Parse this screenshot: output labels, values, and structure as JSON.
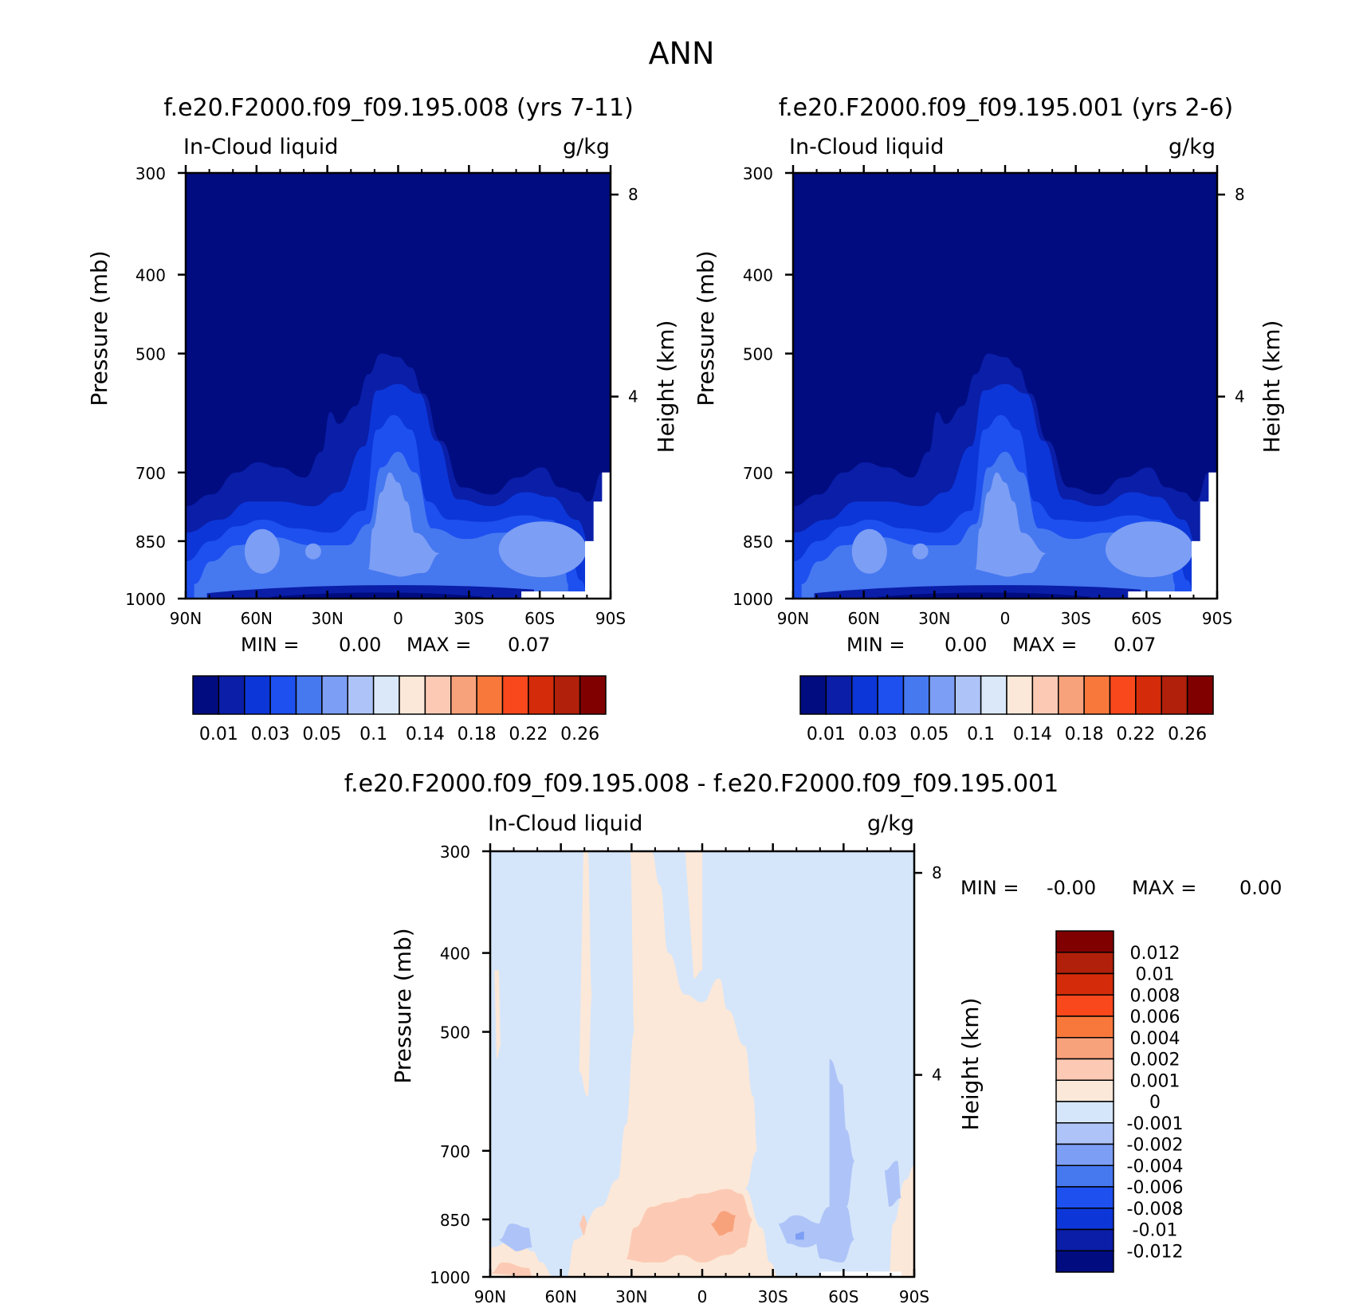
{
  "figure_title": "ANN",
  "palette": {
    "sequential": [
      "#000c80",
      "#0a1ea8",
      "#0c36d8",
      "#1e50f0",
      "#4678f0",
      "#7c9ef4",
      "#aec4f8",
      "#dae8fa",
      "#fce8d8",
      "#fccab4",
      "#f8a27c",
      "#f8783c",
      "#f8481c",
      "#d42c0a",
      "#b0200a",
      "#800000"
    ],
    "difference": [
      "#000c80",
      "#0a1ea8",
      "#0c36d8",
      "#1e50f0",
      "#4678f0",
      "#7c9ef4",
      "#aec4f8",
      "#d6e6fa",
      "#fce8d8",
      "#fccab4",
      "#f8a27c",
      "#f8783c",
      "#f8481c",
      "#d42c0a",
      "#b0200a",
      "#800000"
    ]
  },
  "chart_data": [
    {
      "type": "heatmap",
      "title": "f.e20.F2000.f09_f09.195.008 (yrs 7-11)",
      "subtitle_left": "In-Cloud liquid",
      "subtitle_right": "g/kg",
      "ylabel": "Pressure (mb)",
      "ylabel_right": "Height (km)",
      "x_ticks": [
        "90N",
        "60N",
        "30N",
        "0",
        "30S",
        "60S",
        "90S"
      ],
      "y_ticks": [
        "300",
        "400",
        "500",
        "700",
        "850",
        "1000"
      ],
      "y_ticks_right": [
        "8",
        "4"
      ],
      "stats": {
        "min_label": "MIN =",
        "min": "0.00",
        "max_label": "MAX =",
        "max": "0.07"
      },
      "colorbar_labels": [
        "0.01",
        "0.03",
        "0.05",
        "0.1",
        "0.14",
        "0.18",
        "0.22",
        "0.26"
      ],
      "levels_level_boundaries": [
        0.005,
        0.01,
        0.02,
        0.03,
        0.04,
        0.05,
        0.07,
        0.1,
        0.12,
        0.14,
        0.16,
        0.18,
        0.2,
        0.22,
        0.24,
        0.26
      ]
    },
    {
      "type": "heatmap",
      "title": "f.e20.F2000.f09_f09.195.001 (yrs 2-6)",
      "subtitle_left": "In-Cloud liquid",
      "subtitle_right": "g/kg",
      "ylabel": "Pressure (mb)",
      "ylabel_right": "Height (km)",
      "x_ticks": [
        "90N",
        "60N",
        "30N",
        "0",
        "30S",
        "60S",
        "90S"
      ],
      "y_ticks": [
        "300",
        "400",
        "500",
        "700",
        "850",
        "1000"
      ],
      "y_ticks_right": [
        "8",
        "4"
      ],
      "stats": {
        "min_label": "MIN =",
        "min": "0.00",
        "max_label": "MAX =",
        "max": "0.07"
      },
      "colorbar_labels": [
        "0.01",
        "0.03",
        "0.05",
        "0.1",
        "0.14",
        "0.18",
        "0.22",
        "0.26"
      ]
    },
    {
      "type": "heatmap",
      "title": "f.e20.F2000.f09_f09.195.008 - f.e20.F2000.f09_f09.195.001",
      "subtitle_left": "In-Cloud liquid",
      "subtitle_right": "g/kg",
      "ylabel": "Pressure (mb)",
      "ylabel_right": "Height (km)",
      "x_ticks": [
        "90N",
        "60N",
        "30N",
        "0",
        "30S",
        "60S",
        "90S"
      ],
      "y_ticks": [
        "300",
        "400",
        "500",
        "700",
        "850",
        "1000"
      ],
      "y_ticks_right": [
        "8",
        "4"
      ],
      "stats": {
        "min_label": "MIN =",
        "min": "-0.00",
        "max_label": "MAX =",
        "max": "0.00"
      },
      "colorbar_labels": [
        "0.012",
        "0.01",
        "0.008",
        "0.006",
        "0.004",
        "0.002",
        "0.001",
        "0",
        "-0.001",
        "-0.002",
        "-0.004",
        "-0.006",
        "-0.008",
        "-0.01",
        "-0.012"
      ]
    }
  ]
}
